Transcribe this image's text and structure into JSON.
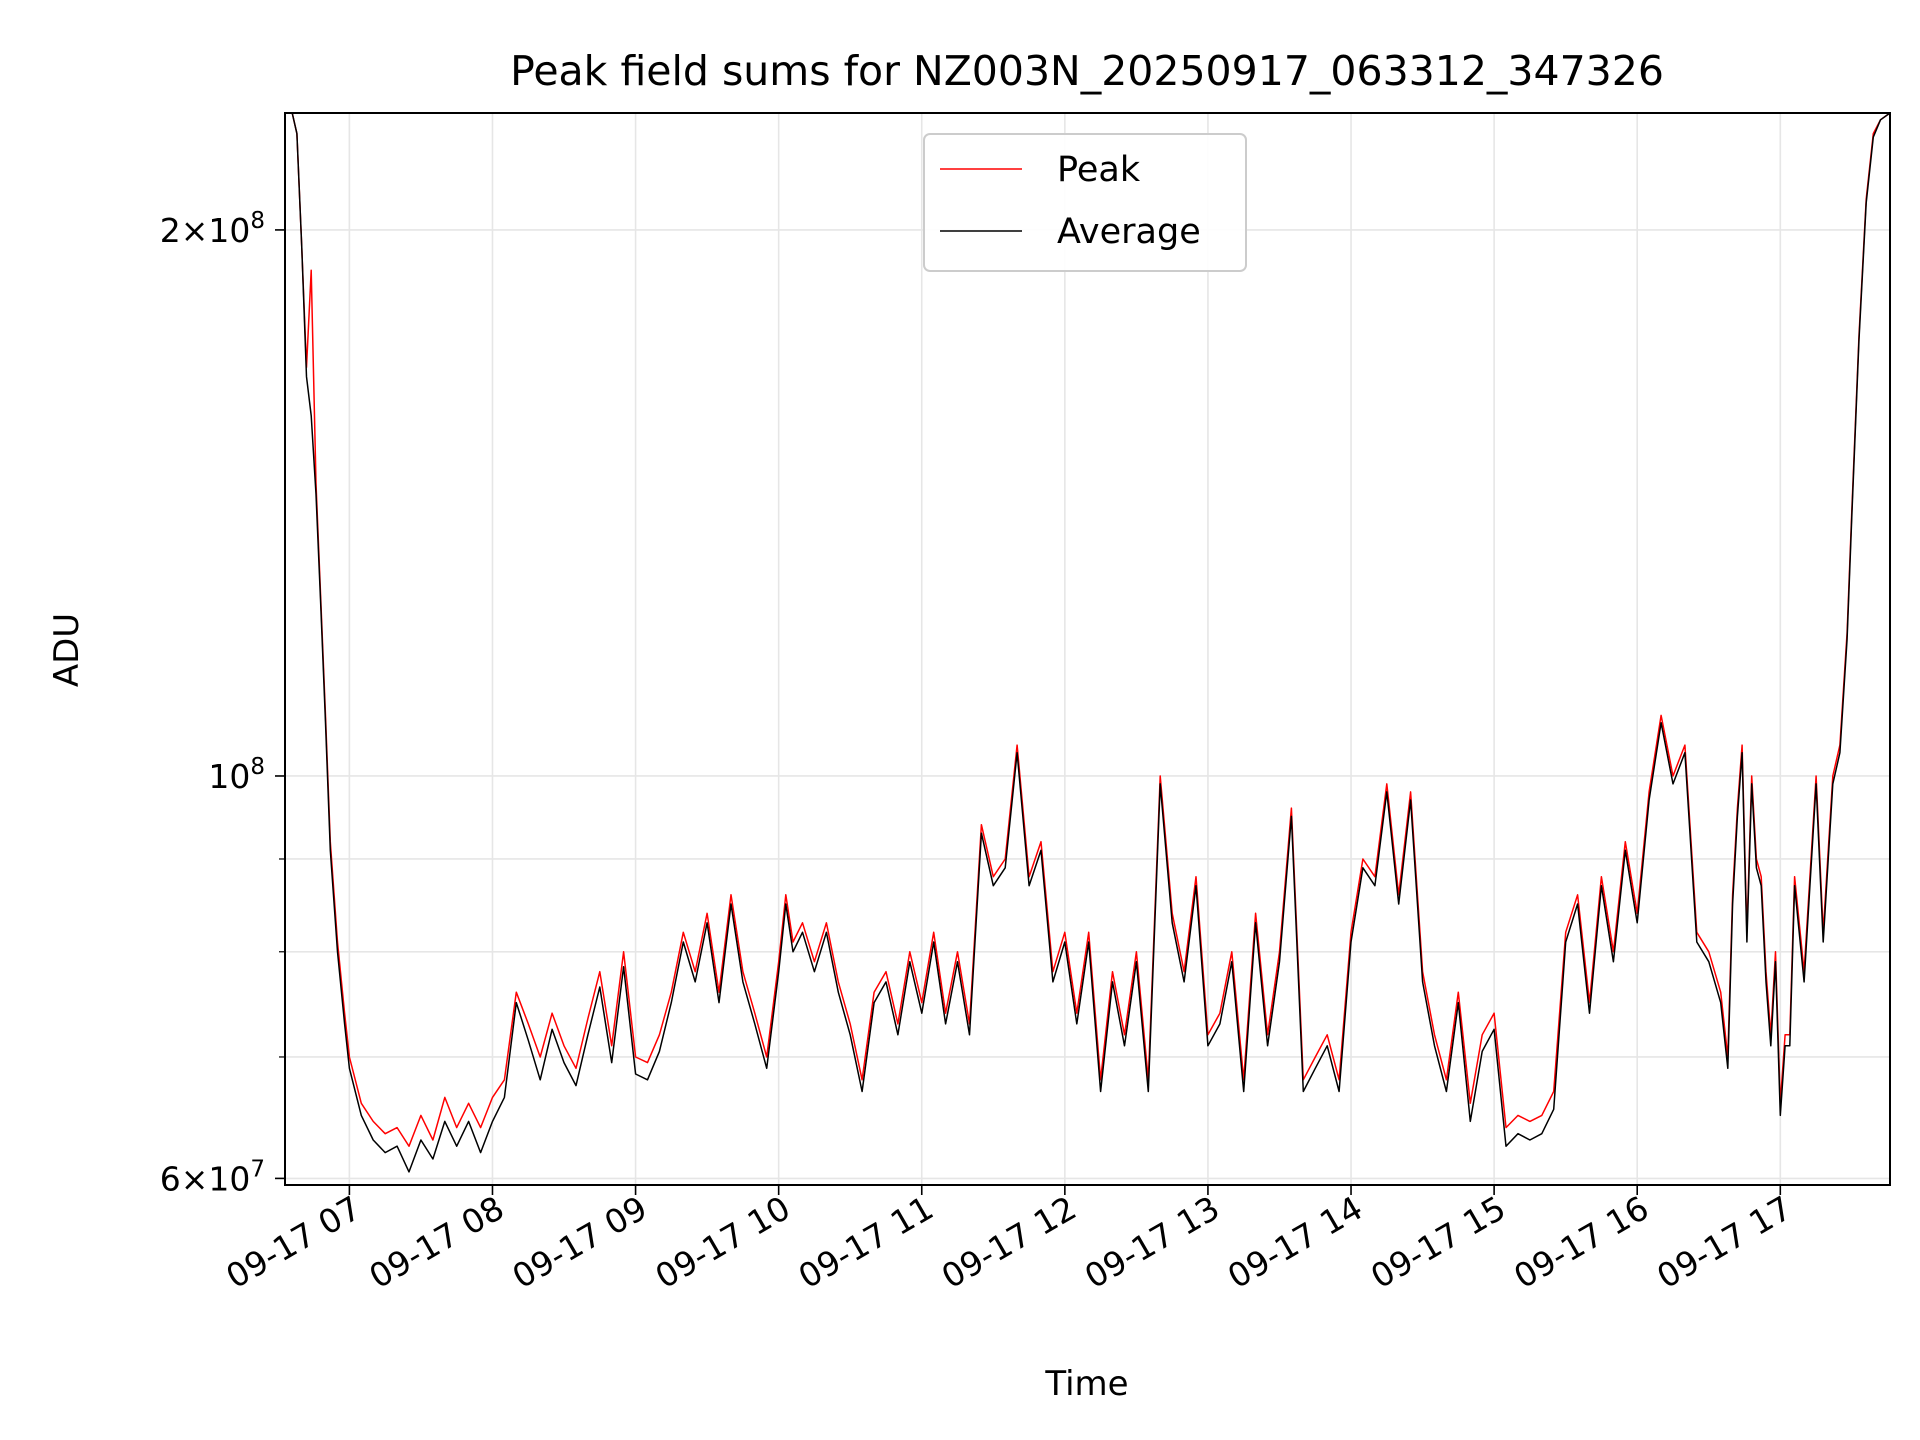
{
  "chart_data": {
    "type": "line",
    "title": "Peak field sums for NZ003N_20250917_063312_347326",
    "xlabel": "Time",
    "ylabel": "ADU",
    "yscale": "log",
    "ylim": [
      59500000,
      232000000
    ],
    "xlim": [
      "2025-09-17 06:33",
      "2025-09-17 17:46"
    ],
    "x_tick_labels": [
      "09-17 07",
      "09-17 08",
      "09-17 09",
      "09-17 10",
      "09-17 11",
      "09-17 12",
      "09-17 13",
      "09-17 14",
      "09-17 15",
      "09-17 16",
      "09-17 17"
    ],
    "y_major_ticks": [
      {
        "value": 60000000,
        "base": "6×10",
        "exp": "7"
      },
      {
        "value": 100000000,
        "base": "10",
        "exp": "8"
      },
      {
        "value": 200000000,
        "base": "2×10",
        "exp": "8"
      }
    ],
    "y_minor_ticks": [
      70000000,
      80000000,
      90000000
    ],
    "grid": true,
    "legend_position": "upper-center",
    "series": [
      {
        "name": "Peak",
        "color": "#ff0000",
        "x": [
          "06:33",
          "06:36",
          "06:38",
          "06:40",
          "06:42",
          "06:44",
          "06:46",
          "06:48",
          "06:50",
          "06:52",
          "06:55",
          "06:58",
          "07:00",
          "07:05",
          "07:10",
          "07:15",
          "07:20",
          "07:25",
          "07:30",
          "07:35",
          "07:40",
          "07:45",
          "07:50",
          "07:55",
          "08:00",
          "08:05",
          "08:10",
          "08:15",
          "08:20",
          "08:25",
          "08:30",
          "08:35",
          "08:40",
          "08:45",
          "08:50",
          "08:55",
          "09:00",
          "09:05",
          "09:10",
          "09:15",
          "09:20",
          "09:25",
          "09:30",
          "09:35",
          "09:40",
          "09:45",
          "09:50",
          "09:55",
          "10:00",
          "10:03",
          "10:06",
          "10:10",
          "10:15",
          "10:20",
          "10:25",
          "10:30",
          "10:35",
          "10:40",
          "10:45",
          "10:50",
          "10:55",
          "11:00",
          "11:05",
          "11:10",
          "11:15",
          "11:20",
          "11:25",
          "11:30",
          "11:35",
          "11:40",
          "11:45",
          "11:50",
          "11:55",
          "12:00",
          "12:05",
          "12:10",
          "12:15",
          "12:20",
          "12:25",
          "12:30",
          "12:35",
          "12:40",
          "12:45",
          "12:50",
          "12:55",
          "13:00",
          "13:05",
          "13:10",
          "13:15",
          "13:20",
          "13:25",
          "13:30",
          "13:35",
          "13:40",
          "13:45",
          "13:50",
          "13:55",
          "14:00",
          "14:05",
          "14:10",
          "14:15",
          "14:20",
          "14:25",
          "14:30",
          "14:35",
          "14:40",
          "14:45",
          "14:50",
          "14:55",
          "15:00",
          "15:05",
          "15:10",
          "15:15",
          "15:20",
          "15:25",
          "15:30",
          "15:35",
          "15:40",
          "15:45",
          "15:50",
          "15:55",
          "16:00",
          "16:05",
          "16:10",
          "16:15",
          "16:20",
          "16:25",
          "16:30",
          "16:35",
          "16:38",
          "16:40",
          "16:42",
          "16:44",
          "16:46",
          "16:48",
          "16:50",
          "16:52",
          "16:54",
          "16:56",
          "16:58",
          "17:00",
          "17:02",
          "17:04",
          "17:06",
          "17:10",
          "17:15",
          "17:18",
          "17:22",
          "17:25",
          "17:28",
          "17:30",
          "17:33",
          "17:36",
          "17:39",
          "17:42",
          "17:46"
        ],
        "values": [
          232000000,
          232000000,
          226000000,
          196000000,
          168000000,
          190000000,
          145000000,
          125000000,
          108000000,
          92000000,
          81000000,
          74000000,
          70000000,
          66000000,
          64500000,
          63500000,
          64000000,
          62500000,
          65000000,
          63000000,
          66500000,
          64000000,
          66000000,
          64000000,
          66500000,
          68000000,
          76000000,
          73000000,
          70000000,
          74000000,
          71000000,
          69000000,
          73500000,
          78000000,
          71000000,
          80000000,
          70000000,
          69500000,
          72000000,
          76000000,
          82000000,
          78000000,
          84000000,
          76000000,
          86000000,
          78000000,
          74000000,
          70000000,
          79000000,
          86000000,
          81000000,
          83000000,
          79000000,
          83000000,
          77000000,
          73000000,
          68000000,
          76000000,
          78000000,
          73000000,
          80000000,
          75000000,
          82000000,
          74000000,
          80000000,
          73000000,
          94000000,
          88000000,
          90000000,
          104000000,
          88000000,
          92000000,
          78000000,
          82000000,
          74000000,
          82000000,
          68000000,
          78000000,
          72000000,
          80000000,
          68000000,
          100000000,
          84000000,
          78000000,
          88000000,
          72000000,
          74000000,
          80000000,
          68000000,
          84000000,
          72000000,
          80000000,
          96000000,
          68000000,
          70000000,
          72000000,
          68000000,
          82000000,
          90000000,
          88000000,
          99000000,
          86000000,
          98000000,
          78000000,
          72000000,
          68000000,
          76000000,
          66000000,
          72000000,
          74000000,
          64000000,
          65000000,
          64500000,
          65000000,
          67000000,
          82000000,
          86000000,
          75000000,
          88000000,
          80000000,
          92000000,
          84000000,
          98000000,
          108000000,
          100000000,
          104000000,
          82000000,
          80000000,
          76000000,
          70000000,
          86000000,
          96000000,
          104000000,
          82000000,
          100000000,
          90000000,
          88000000,
          78000000,
          72000000,
          80000000,
          66000000,
          72000000,
          72000000,
          88000000,
          78000000,
          100000000,
          82000000,
          100000000,
          104000000,
          120000000,
          140000000,
          175000000,
          208000000,
          226000000,
          230000000,
          232000000
        ]
      },
      {
        "name": "Average",
        "color": "#000000",
        "x": [
          "06:33",
          "06:36",
          "06:38",
          "06:40",
          "06:42",
          "06:44",
          "06:46",
          "06:48",
          "06:50",
          "06:52",
          "06:55",
          "06:58",
          "07:00",
          "07:05",
          "07:10",
          "07:15",
          "07:20",
          "07:25",
          "07:30",
          "07:35",
          "07:40",
          "07:45",
          "07:50",
          "07:55",
          "08:00",
          "08:05",
          "08:10",
          "08:15",
          "08:20",
          "08:25",
          "08:30",
          "08:35",
          "08:40",
          "08:45",
          "08:50",
          "08:55",
          "09:00",
          "09:05",
          "09:10",
          "09:15",
          "09:20",
          "09:25",
          "09:30",
          "09:35",
          "09:40",
          "09:45",
          "09:50",
          "09:55",
          "10:00",
          "10:03",
          "10:06",
          "10:10",
          "10:15",
          "10:20",
          "10:25",
          "10:30",
          "10:35",
          "10:40",
          "10:45",
          "10:50",
          "10:55",
          "11:00",
          "11:05",
          "11:10",
          "11:15",
          "11:20",
          "11:25",
          "11:30",
          "11:35",
          "11:40",
          "11:45",
          "11:50",
          "11:55",
          "12:00",
          "12:05",
          "12:10",
          "12:15",
          "12:20",
          "12:25",
          "12:30",
          "12:35",
          "12:40",
          "12:45",
          "12:50",
          "12:55",
          "13:00",
          "13:05",
          "13:10",
          "13:15",
          "13:20",
          "13:25",
          "13:30",
          "13:35",
          "13:40",
          "13:45",
          "13:50",
          "13:55",
          "14:00",
          "14:05",
          "14:10",
          "14:15",
          "14:20",
          "14:25",
          "14:30",
          "14:35",
          "14:40",
          "14:45",
          "14:50",
          "14:55",
          "15:00",
          "15:05",
          "15:10",
          "15:15",
          "15:20",
          "15:25",
          "15:30",
          "15:35",
          "15:40",
          "15:45",
          "15:50",
          "15:55",
          "16:00",
          "16:05",
          "16:10",
          "16:15",
          "16:20",
          "16:25",
          "16:30",
          "16:35",
          "16:38",
          "16:40",
          "16:42",
          "16:44",
          "16:46",
          "16:48",
          "16:50",
          "16:52",
          "16:54",
          "16:56",
          "16:58",
          "17:00",
          "17:02",
          "17:04",
          "17:06",
          "17:10",
          "17:15",
          "17:18",
          "17:22",
          "17:25",
          "17:28",
          "17:30",
          "17:33",
          "17:36",
          "17:39",
          "17:42",
          "17:46"
        ],
        "values": [
          232000000,
          232000000,
          226000000,
          196000000,
          166000000,
          158000000,
          143000000,
          124000000,
          107000000,
          91000000,
          80000000,
          73000000,
          69000000,
          65000000,
          63000000,
          62000000,
          62500000,
          60500000,
          63000000,
          61500000,
          64500000,
          62500000,
          64500000,
          62000000,
          64500000,
          66500000,
          75000000,
          71500000,
          68000000,
          72500000,
          69500000,
          67500000,
          72000000,
          76500000,
          69500000,
          78500000,
          68500000,
          68000000,
          70500000,
          75000000,
          81000000,
          77000000,
          83000000,
          75000000,
          85000000,
          77000000,
          73000000,
          69000000,
          78000000,
          85000000,
          80000000,
          82000000,
          78000000,
          82000000,
          76000000,
          72000000,
          67000000,
          75000000,
          77000000,
          72000000,
          79000000,
          74000000,
          81000000,
          73000000,
          79000000,
          72000000,
          93000000,
          87000000,
          89000000,
          103000000,
          87000000,
          91000000,
          77000000,
          81000000,
          73000000,
          81000000,
          67000000,
          77000000,
          71000000,
          79000000,
          67000000,
          99000000,
          83000000,
          77000000,
          87000000,
          71000000,
          73000000,
          79000000,
          67000000,
          83000000,
          71000000,
          79000000,
          95000000,
          67000000,
          69000000,
          71000000,
          67000000,
          81000000,
          89000000,
          87000000,
          98000000,
          85000000,
          97000000,
          77000000,
          71000000,
          67000000,
          75000000,
          64500000,
          70500000,
          72500000,
          62500000,
          63500000,
          63000000,
          63500000,
          65500000,
          81000000,
          85000000,
          74000000,
          87000000,
          79000000,
          91000000,
          83000000,
          97000000,
          107000000,
          99000000,
          103000000,
          81000000,
          79000000,
          75000000,
          69000000,
          85000000,
          95000000,
          103000000,
          81000000,
          99000000,
          89000000,
          87000000,
          77000000,
          71000000,
          79000000,
          65000000,
          71000000,
          71000000,
          87000000,
          77000000,
          99000000,
          81000000,
          99000000,
          103000000,
          119000000,
          139000000,
          174000000,
          207000000,
          225000000,
          230000000,
          232000000
        ]
      }
    ]
  }
}
